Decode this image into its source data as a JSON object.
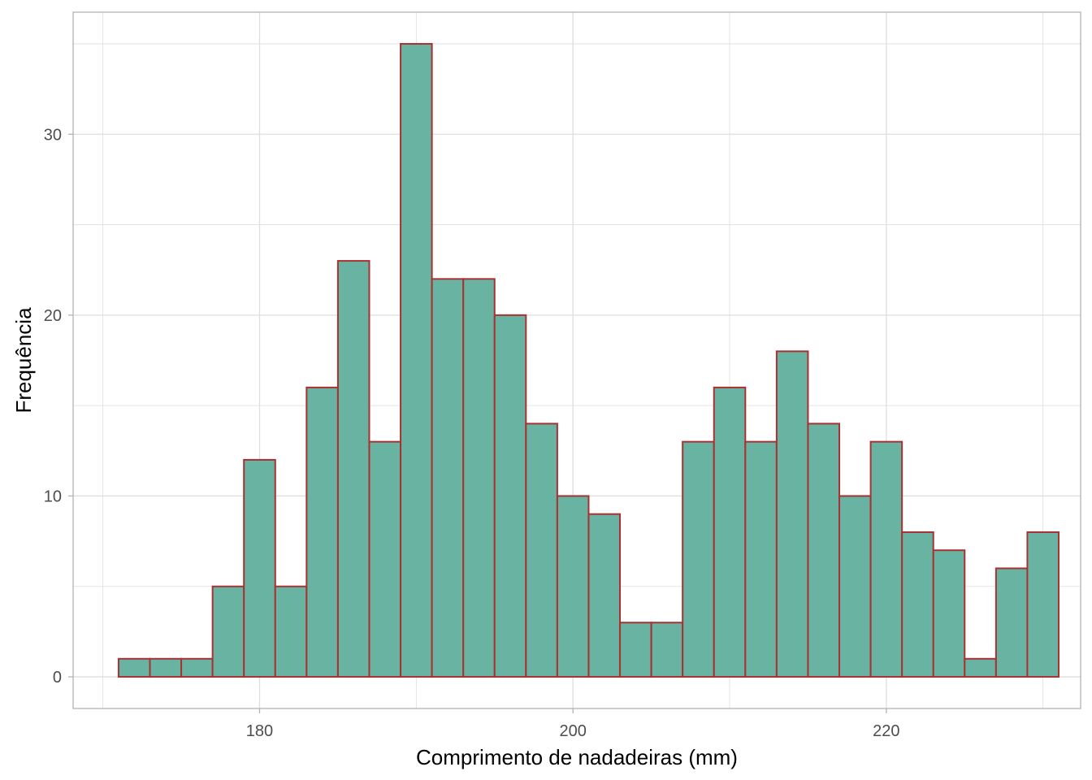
{
  "chart_data": {
    "type": "bar",
    "subtype": "histogram",
    "title": "",
    "xlabel": "Comprimento de nadadeiras (mm)",
    "ylabel": "Frequência",
    "xlim": [
      168.1,
      232.4
    ],
    "ylim": [
      -1.75,
      36.75
    ],
    "x_ticks": [
      180,
      200,
      220
    ],
    "y_ticks": [
      0,
      10,
      20,
      30
    ],
    "x_minor_ticks": [
      170,
      190,
      210,
      230
    ],
    "y_minor_ticks": [
      5,
      15,
      25,
      35
    ],
    "grid": true,
    "legend": "none",
    "bin_width": 2,
    "bins": [
      {
        "x0": 171,
        "x1": 173,
        "count": 1
      },
      {
        "x0": 173,
        "x1": 175,
        "count": 1
      },
      {
        "x0": 175,
        "x1": 177,
        "count": 1
      },
      {
        "x0": 177,
        "x1": 179,
        "count": 5
      },
      {
        "x0": 179,
        "x1": 181,
        "count": 12
      },
      {
        "x0": 181,
        "x1": 183,
        "count": 5
      },
      {
        "x0": 183,
        "x1": 185,
        "count": 16
      },
      {
        "x0": 185,
        "x1": 187,
        "count": 23
      },
      {
        "x0": 187,
        "x1": 189,
        "count": 13
      },
      {
        "x0": 189,
        "x1": 191,
        "count": 35
      },
      {
        "x0": 191,
        "x1": 193,
        "count": 22
      },
      {
        "x0": 193,
        "x1": 195,
        "count": 22
      },
      {
        "x0": 195,
        "x1": 197,
        "count": 20
      },
      {
        "x0": 197,
        "x1": 199,
        "count": 14
      },
      {
        "x0": 199,
        "x1": 201,
        "count": 10
      },
      {
        "x0": 201,
        "x1": 203,
        "count": 9
      },
      {
        "x0": 203,
        "x1": 205,
        "count": 3
      },
      {
        "x0": 205,
        "x1": 207,
        "count": 3
      },
      {
        "x0": 207,
        "x1": 209,
        "count": 13
      },
      {
        "x0": 209,
        "x1": 211,
        "count": 16
      },
      {
        "x0": 211,
        "x1": 213,
        "count": 13
      },
      {
        "x0": 213,
        "x1": 215,
        "count": 18
      },
      {
        "x0": 215,
        "x1": 217,
        "count": 14
      },
      {
        "x0": 217,
        "x1": 219,
        "count": 10
      },
      {
        "x0": 219,
        "x1": 221,
        "count": 13
      },
      {
        "x0": 221,
        "x1": 223,
        "count": 8
      },
      {
        "x0": 223,
        "x1": 225,
        "count": 7
      },
      {
        "x0": 225,
        "x1": 227,
        "count": 1
      },
      {
        "x0": 227,
        "x1": 229,
        "count": 6
      },
      {
        "x0": 229,
        "x1": 231,
        "count": 8
      }
    ],
    "colors": {
      "bar_fill": "#69b3a2",
      "bar_stroke": "#a83232",
      "grid": "#dedede",
      "panel_border": "#b3b3b3",
      "tick_text": "#4d4d4d",
      "title_text": "#000000"
    }
  }
}
